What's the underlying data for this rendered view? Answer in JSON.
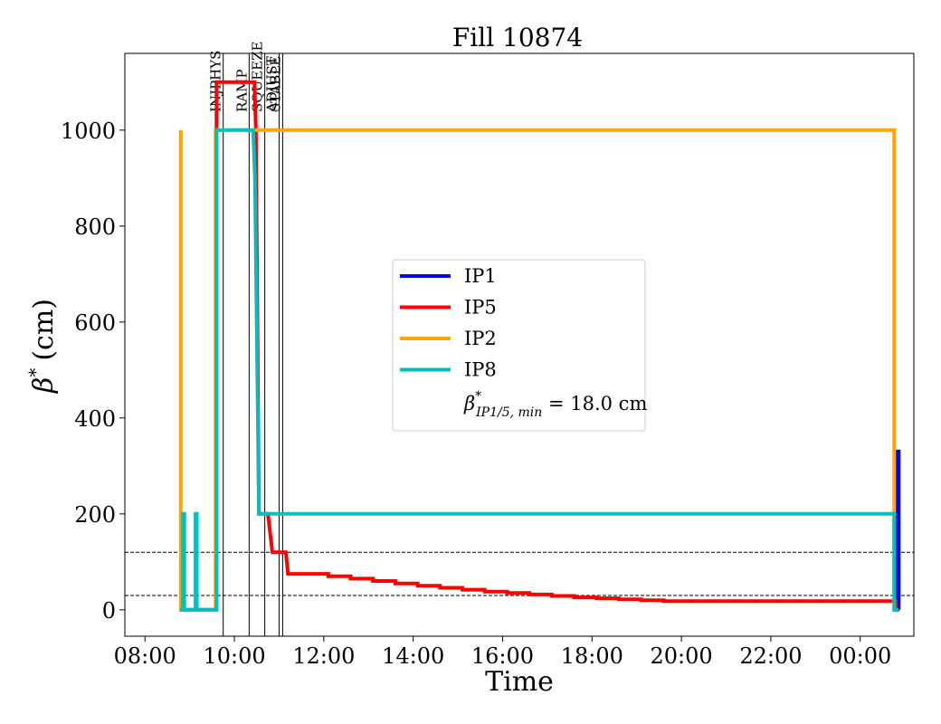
{
  "chart_data": {
    "type": "line",
    "title": "Fill 10874",
    "xlabel": "Time",
    "ylabel_symbol": "β",
    "ylabel_sup": "*",
    "ylabel_unit": "(cm)",
    "x_unit": "hours since 08:00",
    "xlim": [
      -0.45,
      17.2
    ],
    "ylim": [
      -55,
      1160
    ],
    "x_ticks": [
      {
        "x": 0,
        "label": "08:00"
      },
      {
        "x": 2,
        "label": "10:00"
      },
      {
        "x": 4,
        "label": "12:00"
      },
      {
        "x": 6,
        "label": "14:00"
      },
      {
        "x": 8,
        "label": "16:00"
      },
      {
        "x": 10,
        "label": "18:00"
      },
      {
        "x": 12,
        "label": "20:00"
      },
      {
        "x": 14,
        "label": "22:00"
      },
      {
        "x": 16,
        "label": "00:00"
      }
    ],
    "y_ticks": [
      {
        "y": 0,
        "label": "0"
      },
      {
        "y": 200,
        "label": "200"
      },
      {
        "y": 400,
        "label": "400"
      },
      {
        "y": 600,
        "label": "600"
      },
      {
        "y": 800,
        "label": "800"
      },
      {
        "y": 1000,
        "label": "1000"
      }
    ],
    "phases": [
      {
        "x": 1.75,
        "label": "INJPHYS"
      },
      {
        "x": 2.33,
        "label": "RAMP"
      },
      {
        "x": 2.68,
        "label": "SQUEEZE"
      },
      {
        "x": 3.0,
        "label": "ADJUST"
      },
      {
        "x": 3.08,
        "label": "STABLE"
      }
    ],
    "hlines": [
      120,
      30
    ],
    "series": [
      {
        "name": "IP1",
        "color": "#0000ff",
        "points": [
          [
            16.8,
            0
          ],
          [
            16.83,
            0
          ],
          [
            16.83,
            330
          ],
          [
            16.86,
            330
          ],
          [
            16.86,
            0
          ]
        ]
      },
      {
        "name": "IP5",
        "color": "#ff0000",
        "points": [
          [
            0.83,
            0
          ],
          [
            1.6,
            0
          ],
          [
            1.6,
            1100
          ],
          [
            2.45,
            1100
          ],
          [
            2.48,
            1000
          ],
          [
            2.55,
            200
          ],
          [
            2.75,
            200
          ],
          [
            2.85,
            120
          ],
          [
            3.15,
            120
          ],
          [
            3.2,
            75
          ],
          [
            4.1,
            75
          ],
          [
            4.1,
            70
          ],
          [
            4.6,
            70
          ],
          [
            4.6,
            65
          ],
          [
            5.1,
            65
          ],
          [
            5.1,
            60
          ],
          [
            5.6,
            60
          ],
          [
            5.6,
            55
          ],
          [
            6.1,
            55
          ],
          [
            6.1,
            50
          ],
          [
            6.6,
            50
          ],
          [
            6.6,
            46
          ],
          [
            7.1,
            46
          ],
          [
            7.1,
            42
          ],
          [
            7.6,
            42
          ],
          [
            7.6,
            38
          ],
          [
            8.1,
            38
          ],
          [
            8.1,
            35
          ],
          [
            8.6,
            35
          ],
          [
            8.6,
            32
          ],
          [
            9.1,
            32
          ],
          [
            9.1,
            29
          ],
          [
            9.6,
            29
          ],
          [
            9.6,
            26
          ],
          [
            10.1,
            26
          ],
          [
            10.1,
            24
          ],
          [
            10.6,
            24
          ],
          [
            10.6,
            22
          ],
          [
            11.1,
            22
          ],
          [
            11.1,
            20
          ],
          [
            11.6,
            20
          ],
          [
            11.6,
            18
          ],
          [
            16.7,
            18
          ],
          [
            16.8,
            18
          ],
          [
            16.8,
            0
          ],
          [
            16.85,
            0
          ]
        ]
      },
      {
        "name": "IP2",
        "color": "#ffa500",
        "points": [
          [
            0.8,
            1000
          ],
          [
            0.8,
            0
          ],
          [
            1.58,
            0
          ],
          [
            1.58,
            1000
          ],
          [
            16.76,
            1000
          ],
          [
            16.76,
            0
          ],
          [
            16.85,
            0
          ]
        ]
      },
      {
        "name": "IP8",
        "color": "#00bfbf",
        "points": [
          [
            0.78,
            0
          ],
          [
            0.85,
            0
          ],
          [
            0.85,
            200
          ],
          [
            0.88,
            200
          ],
          [
            0.88,
            0
          ],
          [
            1.13,
            0
          ],
          [
            1.13,
            200
          ],
          [
            1.16,
            200
          ],
          [
            1.16,
            0
          ],
          [
            1.6,
            0
          ],
          [
            1.6,
            1000
          ],
          [
            2.42,
            1000
          ],
          [
            2.46,
            900
          ],
          [
            2.5,
            600
          ],
          [
            2.55,
            200
          ],
          [
            16.76,
            200
          ],
          [
            16.76,
            0
          ],
          [
            16.85,
            0
          ]
        ]
      }
    ],
    "legend": {
      "placement": "center",
      "note": {
        "symbol": "β",
        "sup": "*",
        "sub": "IP1/5, min",
        "eq": " = 18.0 cm"
      }
    }
  }
}
